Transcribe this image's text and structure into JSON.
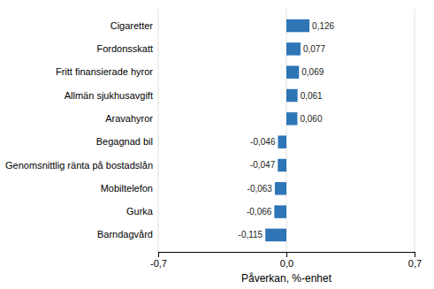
{
  "chart_data": {
    "type": "bar",
    "orientation": "horizontal",
    "categories": [
      "Barndagvård",
      "Gurka",
      "Mobiltelefon",
      "Genomsnittlig ränta på bostadslån",
      "Begagnad bil",
      "Aravahyror",
      "Allmän sjukhusavgift",
      "Fritt finansierade hyror",
      "Fordonsskatt",
      "Cigaretter"
    ],
    "values": [
      -0.115,
      -0.066,
      -0.063,
      -0.047,
      -0.046,
      0.06,
      0.061,
      0.069,
      0.077,
      0.126
    ],
    "value_labels": [
      "-0,115",
      "-0,066",
      "-0,063",
      "-0,047",
      "-0,046",
      "0,060",
      "0,061",
      "0,069",
      "0,077",
      "0,126"
    ],
    "data_labels": true,
    "color": "#2E75B6",
    "xlabel": "Påverkan, %-enhet",
    "xlim": [
      -0.7,
      0.7
    ],
    "xticks": [
      {
        "value": -0.7,
        "label": "-0,7"
      },
      {
        "value": 0.0,
        "label": "0,0"
      },
      {
        "value": 0.7,
        "label": "0,7"
      }
    ],
    "grid": true
  }
}
